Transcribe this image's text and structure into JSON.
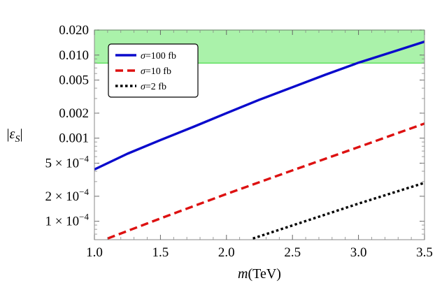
{
  "chart_data": {
    "type": "line",
    "title": "",
    "xlabel_main": "m",
    "xlabel_unit": "(TeV)",
    "ylabel_base": "|ε",
    "ylabel_sub": "S",
    "ylabel_close": "|",
    "xlim": [
      1.0,
      3.5
    ],
    "ylim": [
      6e-05,
      0.02
    ],
    "yscale": "log",
    "grid": false,
    "legend_position": "top-left",
    "x_ticks": [
      {
        "value": 1.0,
        "label": "1.0"
      },
      {
        "value": 1.5,
        "label": "1.5"
      },
      {
        "value": 2.0,
        "label": "2.0"
      },
      {
        "value": 2.5,
        "label": "2.5"
      },
      {
        "value": 3.0,
        "label": "3.0"
      },
      {
        "value": 3.5,
        "label": "3.5"
      }
    ],
    "y_ticks": [
      {
        "value": 0.02,
        "label": "0.020"
      },
      {
        "value": 0.01,
        "label": "0.010"
      },
      {
        "value": 0.005,
        "label": "0.005"
      },
      {
        "value": 0.002,
        "label": "0.002"
      },
      {
        "value": 0.001,
        "label": "0.001"
      },
      {
        "value": 0.0005,
        "mant": "5",
        "times": "×",
        "base": "10",
        "exp": "−4"
      },
      {
        "value": 0.0002,
        "mant": "2",
        "times": "×",
        "base": "10",
        "exp": "−4"
      },
      {
        "value": 0.0001,
        "mant": "1",
        "times": "×",
        "base": "10",
        "exp": "−4"
      }
    ],
    "band": {
      "y_low": 0.008,
      "y_high": 0.02,
      "color": "#aaf2aa",
      "edge_color": "#3fd93f"
    },
    "series": [
      {
        "name_sym": "σ",
        "name_rest": "=100 fb",
        "color": "#0a0acc",
        "dash": "solid",
        "x": [
          1.0,
          1.25,
          1.5,
          1.75,
          2.0,
          2.25,
          2.5,
          2.75,
          3.0,
          3.25,
          3.5
        ],
        "y": [
          0.00042,
          0.00065,
          0.00095,
          0.00137,
          0.002,
          0.0029,
          0.0041,
          0.0058,
          0.0081,
          0.0108,
          0.0145
        ]
      },
      {
        "name_sym": "σ",
        "name_rest": "=10 fb",
        "color": "#dd1111",
        "dash": "dashed",
        "x": [
          1.1,
          1.5,
          2.0,
          2.5,
          3.0,
          3.5
        ],
        "y": [
          6.2e-05,
          0.000108,
          0.000213,
          0.00041,
          0.00078,
          0.0015
        ]
      },
      {
        "name_sym": "σ",
        "name_rest": "=2 fb",
        "color": "#000000",
        "dash": "dotted",
        "x": [
          2.2,
          2.5,
          3.0,
          3.5
        ],
        "y": [
          6.2e-05,
          8.9e-05,
          0.000163,
          0.00029
        ]
      }
    ]
  }
}
